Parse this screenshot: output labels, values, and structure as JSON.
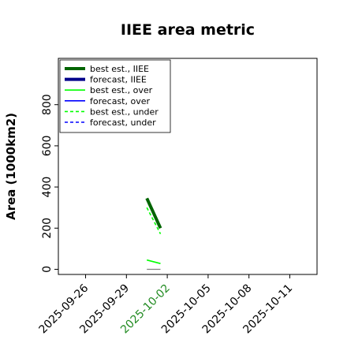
{
  "chart_data": {
    "type": "line",
    "title": "IIEE area metric",
    "xlabel": "",
    "ylabel": "Area (1000km2)",
    "x_ticks": [
      "2025-09-26",
      "2025-09-29",
      "2025-10-02",
      "2025-10-05",
      "2025-10-08",
      "2025-10-11"
    ],
    "highlighted_tick": "2025-10-02",
    "highlight_color": "#228b22",
    "xlim": [
      "2025-09-24",
      "2025-10-13"
    ],
    "y_ticks": [
      0,
      200,
      400,
      600,
      800
    ],
    "ylim": [
      -25,
      1025
    ],
    "grid": false,
    "legend_placement": "top-left",
    "legend": [
      {
        "label": "best est., IIEE",
        "color": "#006400",
        "style": "solid-thick"
      },
      {
        "label": "forecast, IIEE",
        "color": "#00008b",
        "style": "solid-thick"
      },
      {
        "label": "best est., over",
        "color": "#00ff00",
        "style": "solid"
      },
      {
        "label": "forecast, over",
        "color": "#0000ff",
        "style": "solid"
      },
      {
        "label": "best est., under",
        "color": "#00ff00",
        "style": "dashed"
      },
      {
        "label": "forecast, under",
        "color": "#0000ff",
        "style": "dashed"
      }
    ],
    "series": [
      {
        "name": "best est., IIEE",
        "color": "#006400",
        "width": 4,
        "dash": "",
        "points": [
          [
            "2025-09-30T12:00",
            345
          ],
          [
            "2025-10-01T12:00",
            200
          ]
        ]
      },
      {
        "name": "best est., over",
        "color": "#00ff00",
        "width": 1.6,
        "dash": "",
        "points": [
          [
            "2025-09-30T12:00",
            45
          ],
          [
            "2025-10-01T12:00",
            28
          ]
        ]
      },
      {
        "name": "best est., under",
        "color": "#00ff00",
        "width": 1.6,
        "dash": "4,3",
        "points": [
          [
            "2025-09-30T12:00",
            300
          ],
          [
            "2025-10-01T12:00",
            172
          ]
        ]
      },
      {
        "name": "",
        "color": "#808080",
        "width": 1.2,
        "dash": "",
        "points": [
          [
            "2025-09-30T12:00",
            0
          ],
          [
            "2025-10-01T12:00",
            0
          ]
        ]
      }
    ]
  }
}
